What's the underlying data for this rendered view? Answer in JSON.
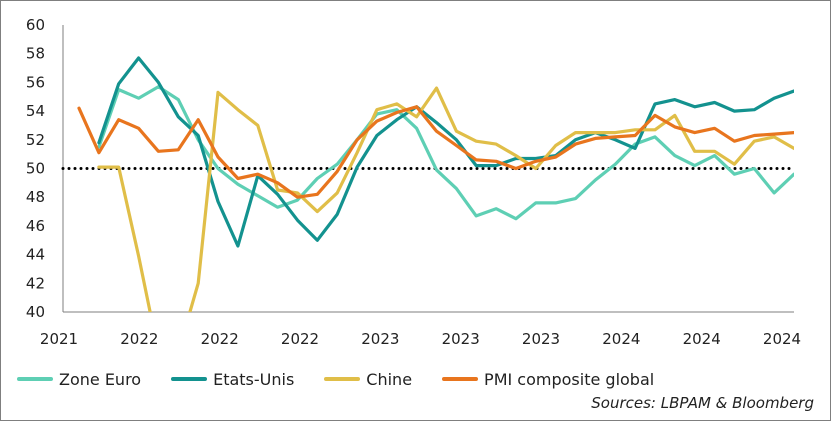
{
  "chart_data": {
    "type": "line",
    "title": "",
    "xlabel": "",
    "ylabel": "",
    "ylim": [
      40,
      60
    ],
    "yticks": [
      40,
      42,
      44,
      46,
      48,
      50,
      52,
      54,
      56,
      58,
      60
    ],
    "x_tick_labels": [
      "2021",
      "2022",
      "2022",
      "2022",
      "2023",
      "2023",
      "2023",
      "2024",
      "2024",
      "2024"
    ],
    "reference_line": {
      "y": 50,
      "style": "dotted",
      "color": "#000000"
    },
    "grid": false,
    "legend_position": "bottom",
    "source": "Sources: LBPAM & Bloomberg",
    "series": [
      {
        "name": "Zone Euro",
        "color": "#5ecfb4",
        "values": [
          null,
          51.5,
          55.5,
          54.9,
          55.7,
          54.8,
          52.0,
          50.0,
          48.9,
          48.1,
          47.3,
          47.8,
          49.3,
          50.3,
          52.0,
          53.8,
          54.1,
          52.8,
          49.9,
          48.6,
          46.7,
          47.2,
          46.5,
          47.6,
          47.6,
          47.9,
          49.2,
          50.3,
          51.7,
          52.2,
          50.9,
          50.2,
          50.9,
          49.6,
          50.0,
          48.3,
          49.6
        ]
      },
      {
        "name": "Etats-Unis",
        "color": "#13928f",
        "values": [
          null,
          51.8,
          55.9,
          57.7,
          56.0,
          53.6,
          52.3,
          47.7,
          44.6,
          49.5,
          48.2,
          46.4,
          45.0,
          46.8,
          50.1,
          52.3,
          53.4,
          54.3,
          53.2,
          52.0,
          50.2,
          50.2,
          50.7,
          50.7,
          50.9,
          52.0,
          52.5,
          52.0,
          51.4,
          54.5,
          54.8,
          54.3,
          54.6,
          54.0,
          54.1,
          54.9,
          55.4
        ]
      },
      {
        "name": "Chine",
        "color": "#e0be48",
        "values": [
          null,
          50.1,
          50.1,
          43.9,
          37.2,
          37.2,
          42.0,
          55.3,
          54.1,
          53.0,
          48.5,
          48.3,
          47.0,
          48.3,
          51.1,
          54.1,
          54.5,
          53.6,
          55.6,
          52.6,
          51.9,
          51.7,
          50.9,
          50.0,
          51.6,
          52.5,
          52.5,
          52.5,
          52.7,
          52.7,
          53.7,
          51.2,
          51.2,
          50.3,
          51.9,
          52.2,
          51.4
        ]
      },
      {
        "name": "PMI composite global",
        "color": "#e8751e",
        "values": [
          54.2,
          51.1,
          53.4,
          52.8,
          51.2,
          51.3,
          53.4,
          50.8,
          49.3,
          49.6,
          49.0,
          48.0,
          48.2,
          49.8,
          52.0,
          53.3,
          53.9,
          54.3,
          52.6,
          51.6,
          50.6,
          50.5,
          50.0,
          50.5,
          50.8,
          51.7,
          52.1,
          52.2,
          52.3,
          53.7,
          52.9,
          52.5,
          52.8,
          51.9,
          52.3,
          52.4,
          52.5
        ]
      }
    ]
  }
}
